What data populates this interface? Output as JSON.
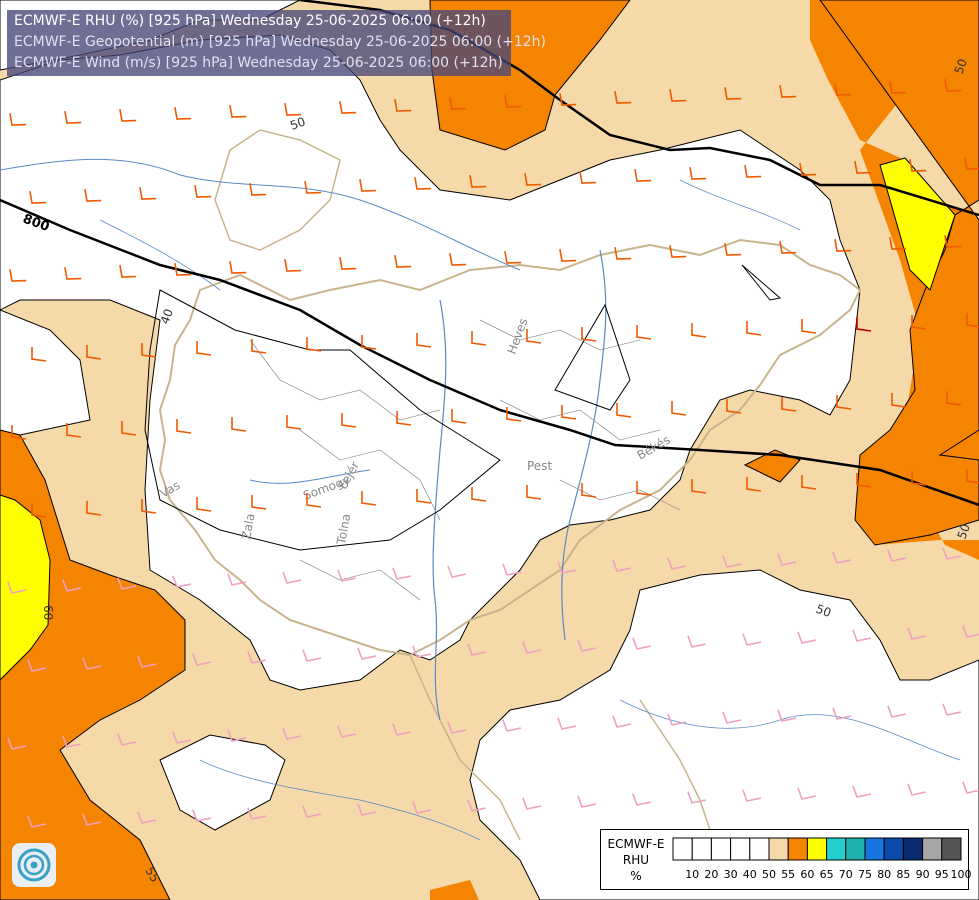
{
  "header": {
    "title_rhu": "ECMWF-E RHU (%) [925 hPa] Wednesday 25-06-2025 06:00 (+12h)",
    "title_geopotential": "ECMWF-E Geopotential (m) [925 hPa] Wednesday 25-06-2025 06:00 (+12h)",
    "title_wind": "ECMWF-E Wind (m/s) [925 hPa] Wednesday 25-06-2025 06:00 (+12h)"
  },
  "legend": {
    "title": "ECMWF-E\nRHU\n%",
    "bins": [
      {
        "label": "10",
        "color": "#ffffff"
      },
      {
        "label": "20",
        "color": "#ffffff"
      },
      {
        "label": "30",
        "color": "#ffffff"
      },
      {
        "label": "40",
        "color": "#ffffff"
      },
      {
        "label": "50",
        "color": "#ffffff"
      },
      {
        "label": "55",
        "color": "#f5d9a8"
      },
      {
        "label": "60",
        "color": "#f58400"
      },
      {
        "label": "65",
        "color": "#ffff00"
      },
      {
        "label": "70",
        "color": "#22d0d0"
      },
      {
        "label": "75",
        "color": "#1fb3b0"
      },
      {
        "label": "80",
        "color": "#1874e0"
      },
      {
        "label": "85",
        "color": "#0a4aa8"
      },
      {
        "label": "90",
        "color": "#0a2a70"
      },
      {
        "label": "95",
        "color": "#a6a6a6"
      },
      {
        "label": "100",
        "color": "#555555"
      }
    ]
  },
  "contour_labels": {
    "geopotential": [
      "800"
    ],
    "rhu": [
      "50",
      "40",
      "50",
      "50",
      "55",
      "60",
      "50"
    ]
  },
  "place_labels": [
    "Heves",
    "Pest",
    "Békés",
    "Vas",
    "Somogy",
    "Fejér",
    "Zala",
    "Tolna"
  ],
  "colors": {
    "white_band": "#ffffff",
    "tan": "#f5d9a8",
    "orange": "#f58400",
    "yellow": "#ffff00",
    "wind_orange": "#f05a00",
    "wind_pink": "#f0a0c0",
    "wind_dark_red": "#c00000",
    "river": "#5a8ac6",
    "border": "#c8b48c"
  },
  "icons": {
    "logo": "ecmwf-swirl-icon"
  }
}
